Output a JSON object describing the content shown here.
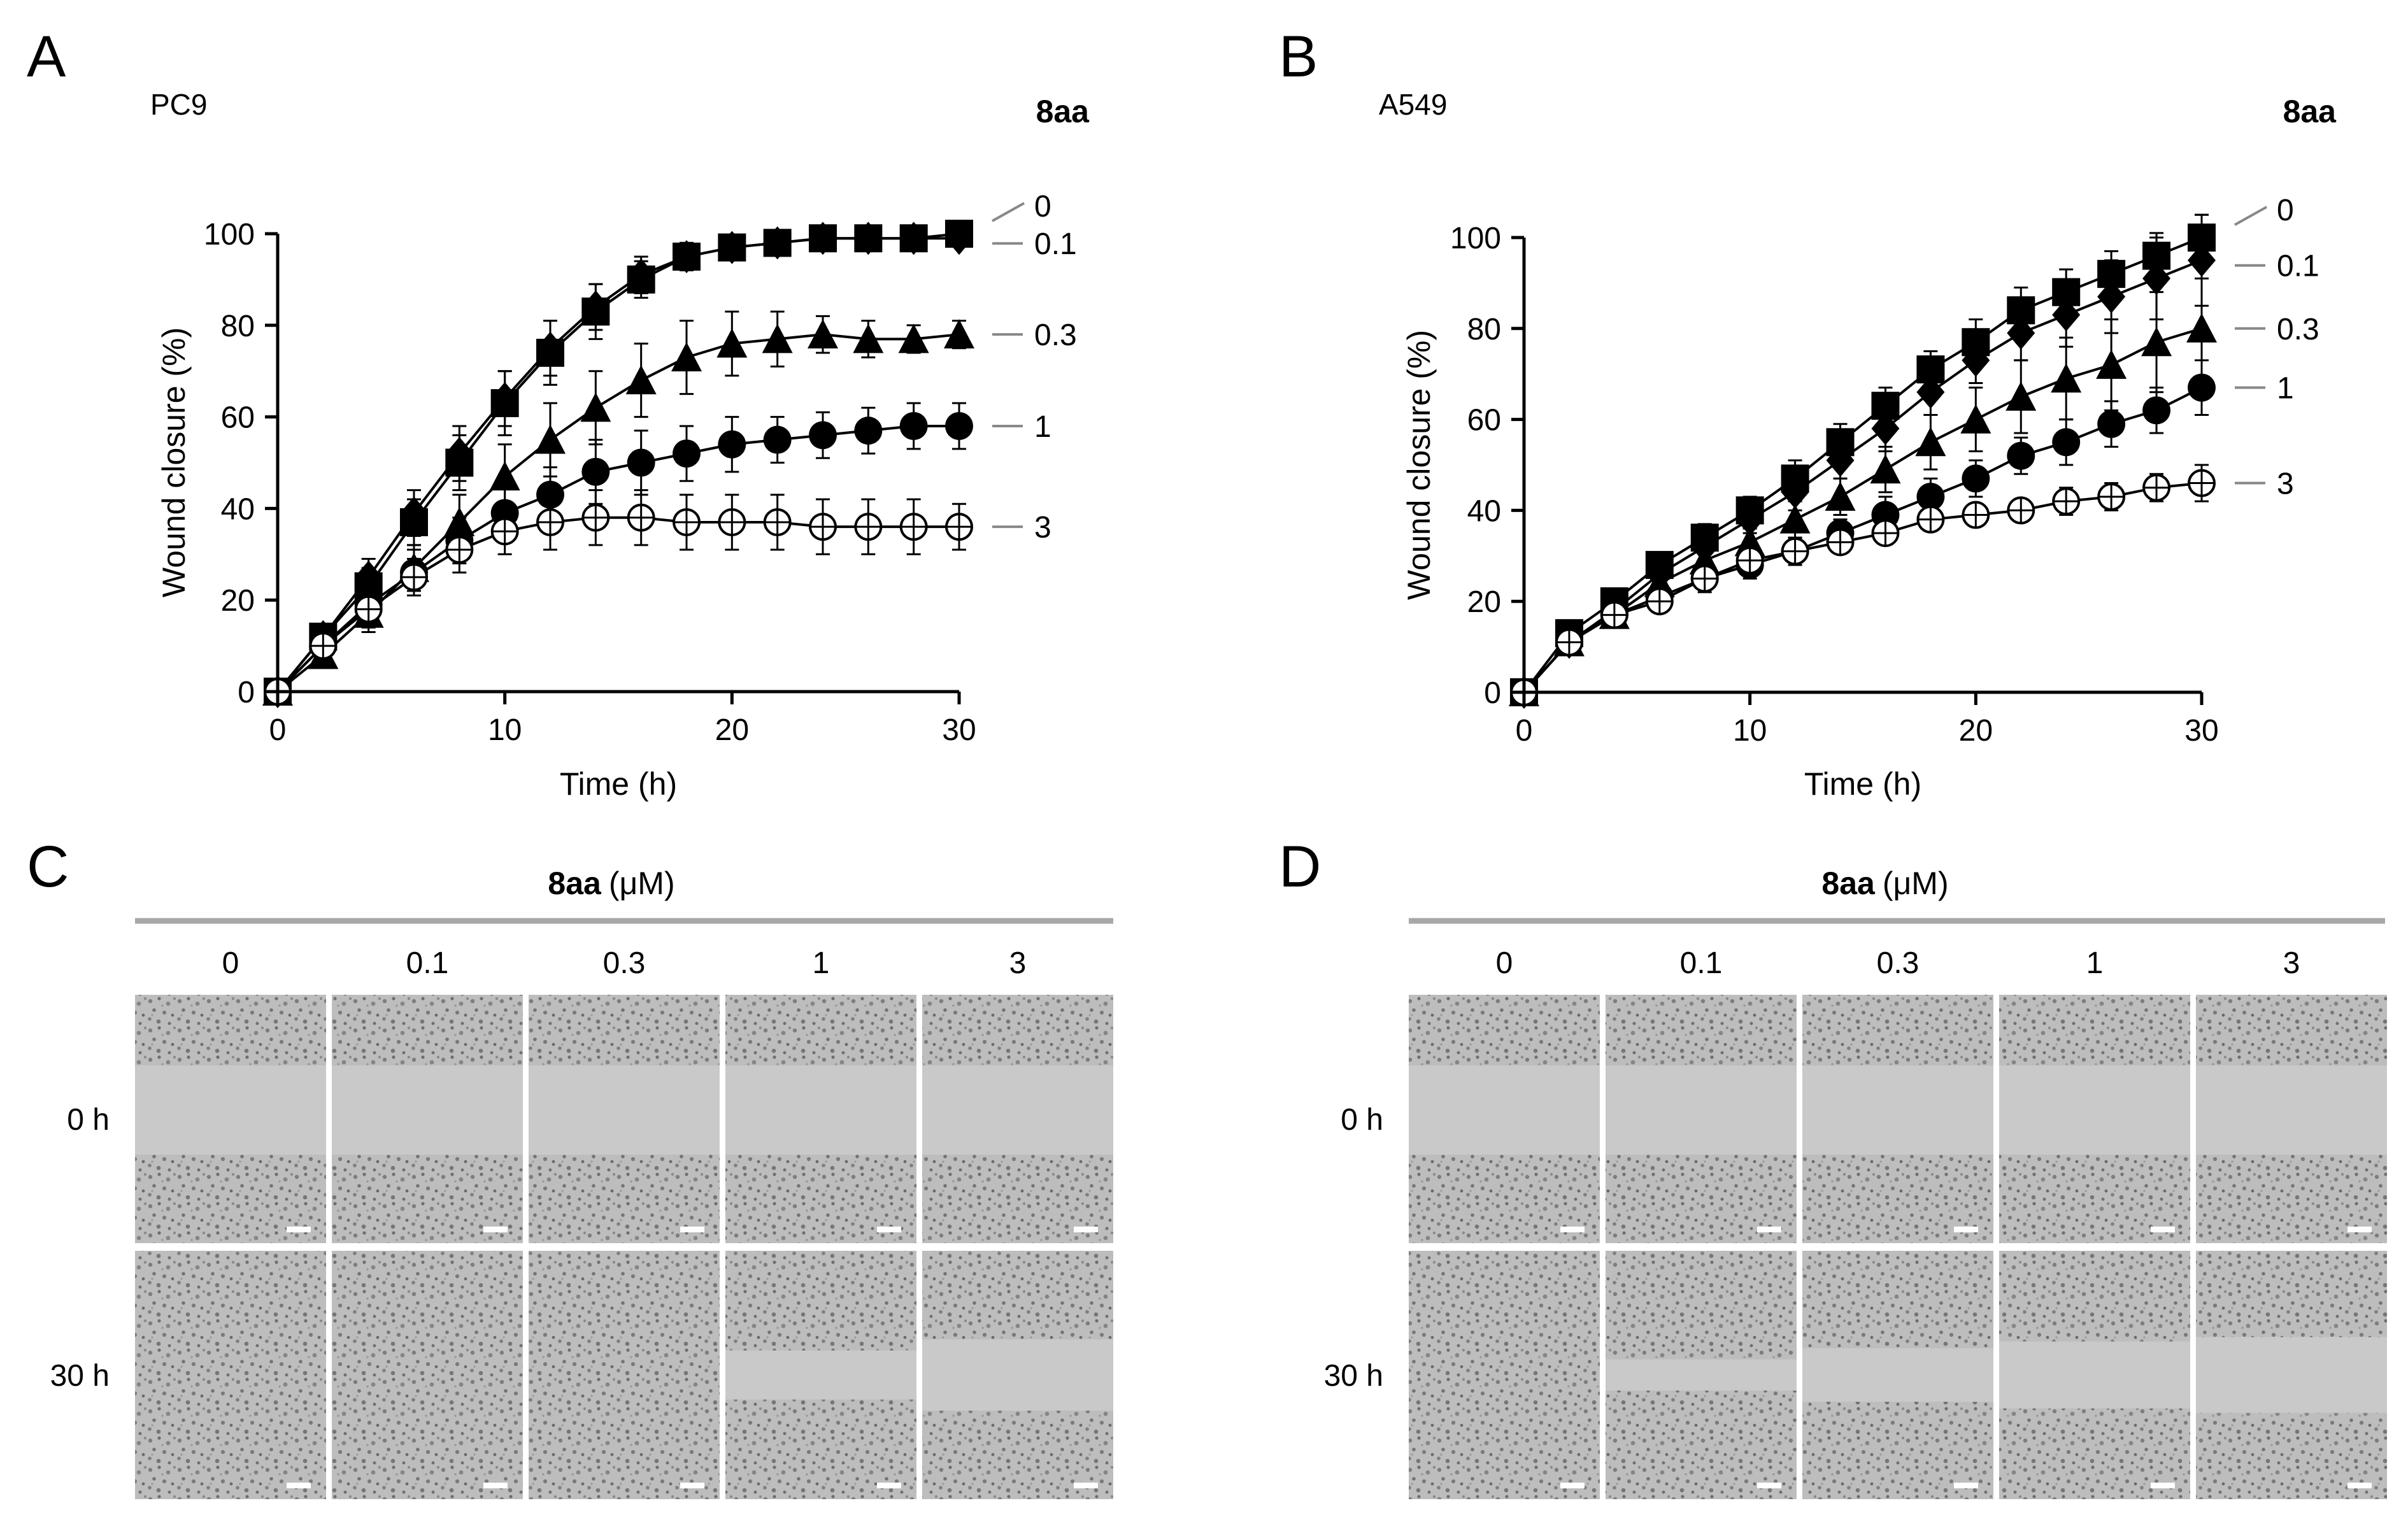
{
  "panels": {
    "A": {
      "letter": "A",
      "cell_line": "PC9",
      "compound": "8aa",
      "concentrations": [
        "0",
        "0.1",
        "0.3",
        "1",
        "3"
      ]
    },
    "B": {
      "letter": "B",
      "cell_line": "A549",
      "compound": "8aa",
      "concentrations": [
        "0",
        "0.1",
        "0.3",
        "1",
        "3"
      ]
    },
    "C": {
      "letter": "C",
      "compound": "8aa",
      "unit": "(μM)",
      "concentrations": [
        "0",
        "0.1",
        "0.3",
        "1",
        "3"
      ],
      "rows": [
        "0 h",
        "30 h"
      ],
      "gap_open_30h": [
        0,
        0,
        0,
        0.55,
        0.8
      ]
    },
    "D": {
      "letter": "D",
      "compound": "8aa",
      "unit": "(μM)",
      "concentrations": [
        "0",
        "0.1",
        "0.3",
        "1",
        "3"
      ],
      "rows": [
        "0 h",
        "30 h"
      ],
      "gap_open_30h": [
        0,
        0.35,
        0.6,
        0.75,
        0.85
      ]
    }
  },
  "colors": {
    "line": "#000000",
    "panel_bg": "#c9c9c9",
    "cells": "#8a8a8a",
    "header_rule": "#a8a8a8",
    "scale_bar": "#ffffff",
    "legend_leader": "#888888"
  },
  "chart_data": [
    {
      "type": "line",
      "panel": "A",
      "title": "PC9",
      "xlabel": "Time (h)",
      "ylabel": "Wound closure (%)",
      "xlim": [
        0,
        30
      ],
      "ylim": [
        0,
        100
      ],
      "xticks": [
        0,
        10,
        20,
        30
      ],
      "yticks": [
        0,
        20,
        40,
        60,
        80,
        100
      ],
      "legend_title": "8aa",
      "x": [
        0,
        2,
        4,
        6,
        8,
        10,
        12,
        14,
        16,
        18,
        20,
        22,
        24,
        26,
        28,
        30
      ],
      "series": [
        {
          "name": "0",
          "marker": "square",
          "values": [
            0,
            12,
            23,
            37,
            50,
            63,
            74,
            83,
            90,
            95,
            97,
            98,
            99,
            99,
            99,
            100
          ],
          "errors": [
            0,
            2,
            4,
            5,
            6,
            7,
            7,
            6,
            4,
            3,
            2,
            2,
            1,
            1,
            1,
            1
          ]
        },
        {
          "name": "0.1",
          "marker": "diamond",
          "values": [
            0,
            12,
            25,
            39,
            52,
            64,
            75,
            84,
            91,
            95,
            97,
            98,
            99,
            99,
            99,
            99
          ],
          "errors": [
            0,
            2,
            4,
            5,
            6,
            6,
            6,
            5,
            4,
            3,
            2,
            2,
            1,
            1,
            1,
            1
          ]
        },
        {
          "name": "0.3",
          "marker": "triangle",
          "values": [
            0,
            8,
            17,
            27,
            37,
            47,
            55,
            62,
            68,
            73,
            76,
            77,
            78,
            77,
            77,
            78
          ],
          "errors": [
            0,
            2,
            4,
            5,
            6,
            7,
            8,
            8,
            8,
            8,
            7,
            6,
            4,
            4,
            3,
            3
          ]
        },
        {
          "name": "1",
          "marker": "circle-filled",
          "values": [
            0,
            10,
            19,
            26,
            33,
            39,
            43,
            48,
            50,
            52,
            54,
            55,
            56,
            57,
            58,
            58
          ],
          "errors": [
            0,
            2,
            4,
            5,
            5,
            6,
            6,
            7,
            7,
            6,
            6,
            5,
            5,
            5,
            5,
            5
          ]
        },
        {
          "name": "3",
          "marker": "circle-open",
          "values": [
            0,
            10,
            18,
            25,
            31,
            35,
            37,
            38,
            38,
            37,
            37,
            37,
            36,
            36,
            36,
            36
          ],
          "errors": [
            0,
            2,
            4,
            4,
            5,
            5,
            6,
            6,
            6,
            6,
            6,
            6,
            6,
            6,
            6,
            5
          ]
        }
      ]
    },
    {
      "type": "line",
      "panel": "B",
      "title": "A549",
      "xlabel": "Time (h)",
      "ylabel": "Wound closure (%)",
      "xlim": [
        0,
        30
      ],
      "ylim": [
        0,
        100
      ],
      "xticks": [
        0,
        10,
        20,
        30
      ],
      "yticks": [
        0,
        20,
        40,
        60,
        80,
        100
      ],
      "legend_title": "8aa",
      "x": [
        0,
        2,
        4,
        6,
        8,
        10,
        12,
        14,
        16,
        18,
        20,
        22,
        24,
        26,
        28,
        30
      ],
      "series": [
        {
          "name": "0",
          "marker": "square",
          "values": [
            0,
            13,
            20,
            28,
            34,
            40,
            47,
            55,
            63,
            71,
            77,
            84,
            88,
            92,
            96,
            100
          ],
          "errors": [
            0,
            2,
            2,
            2,
            3,
            3,
            4,
            4,
            4,
            4,
            5,
            5,
            5,
            5,
            5,
            5
          ]
        },
        {
          "name": "0.1",
          "marker": "diamond",
          "values": [
            0,
            11,
            18,
            26,
            32,
            38,
            44,
            51,
            58,
            66,
            73,
            79,
            83,
            87,
            91,
            95
          ],
          "errors": [
            0,
            2,
            2,
            3,
            3,
            3,
            4,
            4,
            5,
            5,
            5,
            6,
            7,
            8,
            9,
            10
          ]
        },
        {
          "name": "0.3",
          "marker": "triangle",
          "values": [
            0,
            11,
            17,
            24,
            29,
            33,
            38,
            43,
            49,
            55,
            60,
            65,
            69,
            72,
            77,
            80
          ],
          "errors": [
            0,
            2,
            2,
            3,
            3,
            3,
            4,
            4,
            5,
            6,
            7,
            8,
            9,
            10,
            11,
            11
          ]
        },
        {
          "name": "1",
          "marker": "circle-filled",
          "values": [
            0,
            11,
            17,
            21,
            25,
            28,
            31,
            35,
            39,
            43,
            47,
            52,
            55,
            59,
            62,
            67
          ],
          "errors": [
            0,
            2,
            2,
            2,
            3,
            3,
            3,
            3,
            4,
            4,
            4,
            4,
            5,
            5,
            5,
            6
          ]
        },
        {
          "name": "3",
          "marker": "circle-open",
          "values": [
            0,
            11,
            17,
            20,
            25,
            29,
            31,
            33,
            35,
            38,
            39,
            40,
            42,
            43,
            45,
            46
          ],
          "errors": [
            0,
            2,
            2,
            2,
            2,
            2,
            2,
            2,
            2,
            2,
            2,
            2,
            3,
            3,
            3,
            4
          ]
        }
      ]
    }
  ]
}
